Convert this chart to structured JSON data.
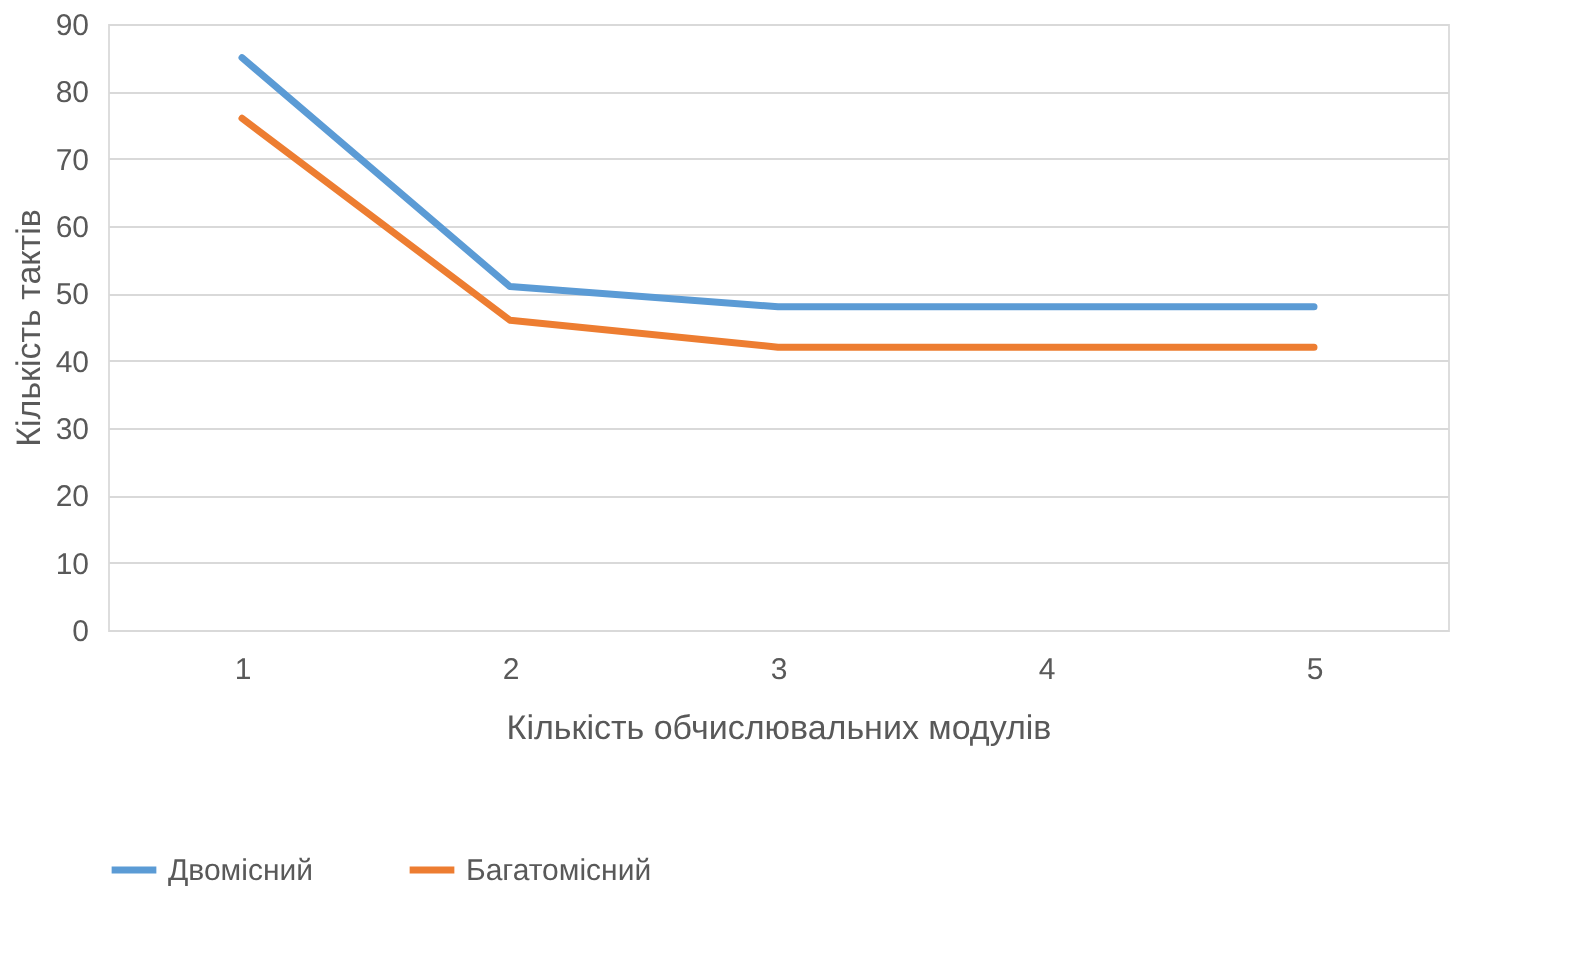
{
  "chart_data": {
    "type": "line",
    "xlabel": "Кількість обчислювальних модулів",
    "ylabel": "Кількість тактів",
    "categories": [
      "1",
      "2",
      "3",
      "4",
      "5"
    ],
    "series": [
      {
        "name": "Двомісний",
        "color": "#5b9bd5",
        "values": [
          85,
          51,
          48,
          48,
          48
        ]
      },
      {
        "name": "Багатомісний",
        "color": "#ed7d31",
        "values": [
          76,
          46,
          42,
          42,
          42
        ]
      }
    ],
    "ylim": [
      0,
      90
    ],
    "yticks": [
      0,
      10,
      20,
      30,
      40,
      50,
      60,
      70,
      80,
      90
    ],
    "grid": "y",
    "legend": "bottom"
  }
}
